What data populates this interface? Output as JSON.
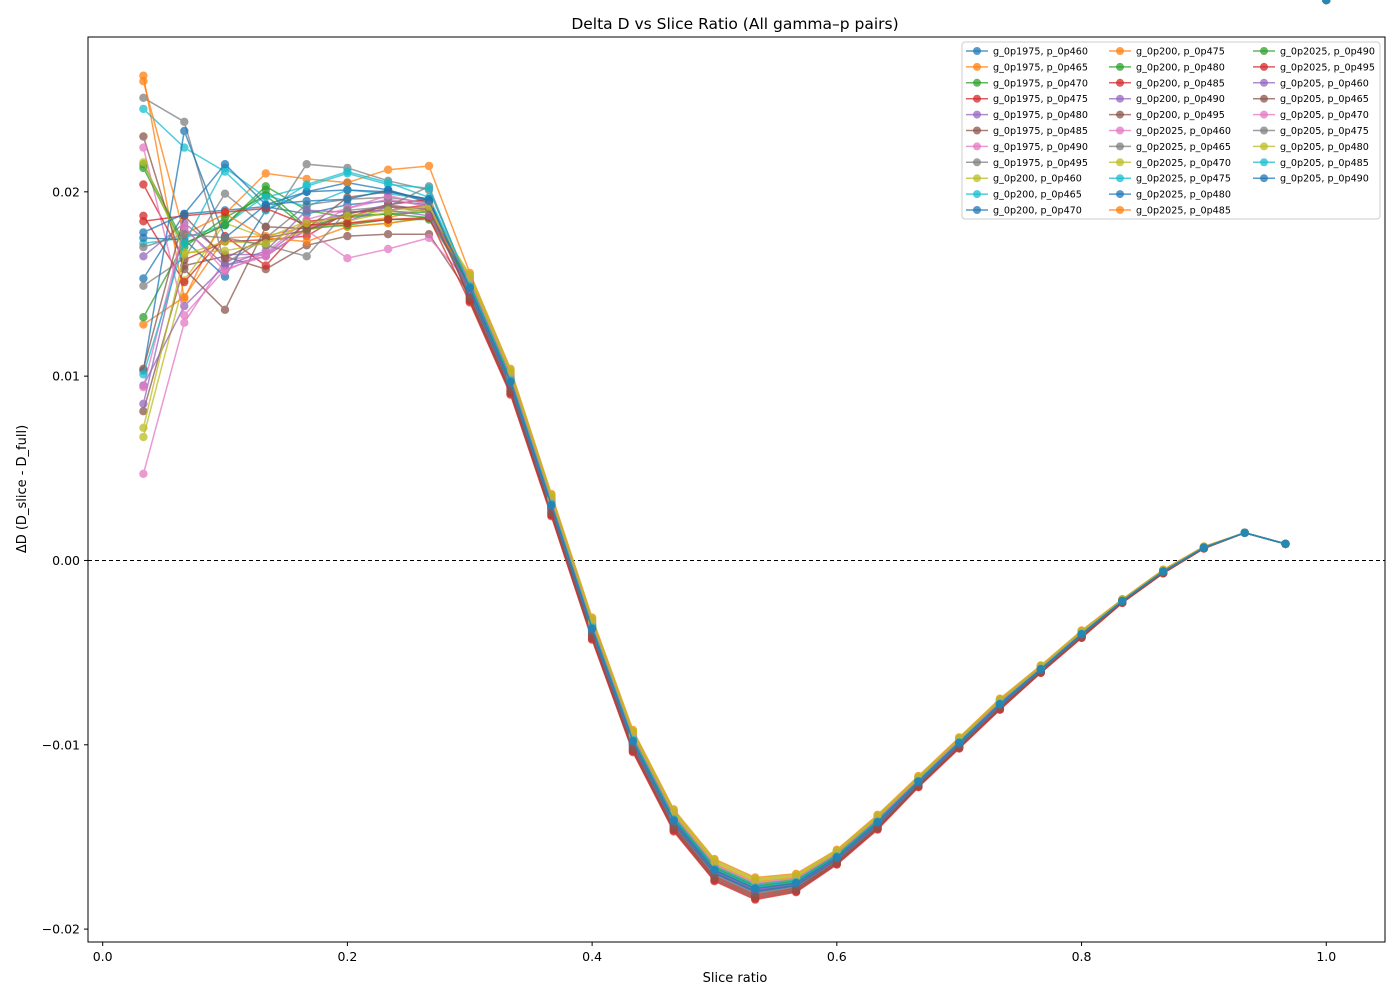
{
  "chart_data": {
    "type": "line",
    "title": "Delta D vs Slice Ratio (All gamma–p pairs)",
    "xlabel": "Slice ratio",
    "ylabel": "ΔD (D_slice - D_full)",
    "xlim": [
      -0.012,
      1.048
    ],
    "ylim": [
      -0.0207,
      0.0284
    ],
    "xticks": [
      0.0,
      0.2,
      0.4,
      0.6,
      0.8,
      1.0
    ],
    "xtick_labels": [
      "0.0",
      "0.2",
      "0.4",
      "0.6",
      "0.8",
      "1.0"
    ],
    "yticks": [
      -0.02,
      -0.01,
      0.0,
      0.01,
      0.02
    ],
    "ytick_labels": [
      "−0.02",
      "−0.01",
      "0.00",
      "0.01",
      "0.02"
    ],
    "reference_line": {
      "y": 0.0,
      "style": "dashed",
      "color": "#000000"
    },
    "grid": false,
    "legend_position": "top-right",
    "legend_columns": 3,
    "palette": [
      "#1f77b4",
      "#ff7f0e",
      "#2ca02c",
      "#d62728",
      "#9467bd",
      "#8c564b",
      "#e377c2",
      "#7f7f7f",
      "#bcbd22",
      "#17becf"
    ],
    "x": [
      0.0333,
      0.0667,
      0.1,
      0.1333,
      0.1667,
      0.2,
      0.2333,
      0.2667,
      0.3,
      0.3333,
      0.3667,
      0.4,
      0.4333,
      0.4667,
      0.5,
      0.5333,
      0.5667,
      0.6,
      0.6333,
      0.6667,
      0.7,
      0.7333,
      0.7667,
      0.8,
      0.8333,
      0.8667,
      0.9,
      0.9333,
      0.9667,
      1.0
    ],
    "tail_x": [
      0.3,
      0.3333,
      0.3667,
      0.4,
      0.4333,
      0.4667,
      0.5,
      0.5333,
      0.5667,
      0.6,
      0.6333,
      0.6667,
      0.7,
      0.7333,
      0.7667,
      0.8,
      0.8333,
      0.8667,
      0.9,
      0.9333,
      0.9667,
      1.0
    ],
    "tail_base": [
      0.0183,
      0.0148,
      0.0097,
      0.003,
      -0.0037,
      -0.0098,
      -0.0141,
      -0.0168,
      -0.0178,
      -0.0175,
      -0.0161,
      -0.0142,
      -0.012,
      -0.0099,
      -0.0078,
      -0.0059,
      -0.004,
      -0.0022,
      -0.0006,
      0.0007,
      0.0015,
      0.0009
    ],
    "tail_spread": [
      0.001,
      0.0008,
      0.0007,
      0.0006,
      0.0006,
      0.0006,
      0.0006,
      0.0006,
      0.0006,
      0.0005,
      0.0004,
      0.0004,
      0.0003,
      0.0003,
      0.0003,
      0.0002,
      0.0002,
      0.0001,
      0.0001,
      5e-05,
      0.0,
      0.0
    ],
    "series": [
      {
        "name": "g_0p1975, p_0p460",
        "color": "#1f77b4",
        "head": [
          0.0153,
          0.0188,
          0.019,
          0.0192,
          0.0188,
          0.0193,
          0.0195,
          0.0193
        ],
        "offset": 0.0
      },
      {
        "name": "g_0p1975, p_0p465",
        "color": "#ff7f0e",
        "head": [
          0.0128,
          0.0143,
          0.0175,
          0.0176,
          0.0181,
          0.0183,
          0.0186,
          0.0191
        ],
        "offset": 0.1
      },
      {
        "name": "g_0p1975, p_0p470",
        "color": "#2ca02c",
        "head": [
          0.0132,
          0.0172,
          0.0182,
          0.0203,
          0.019,
          0.0186,
          0.0188,
          0.0189
        ],
        "offset": -0.2
      },
      {
        "name": "g_0p1975, p_0p475",
        "color": "#d62728",
        "head": [
          0.0204,
          0.0163,
          0.0173,
          0.0174,
          0.0176,
          0.0189,
          0.019,
          0.0193
        ],
        "offset": -0.6
      },
      {
        "name": "g_0p1975, p_0p480",
        "color": "#9467bd",
        "head": [
          0.0165,
          0.0183,
          0.0166,
          0.0166,
          0.0183,
          0.0188,
          0.0193,
          0.019
        ],
        "offset": -0.1
      },
      {
        "name": "g_0p1975, p_0p485",
        "color": "#8c564b",
        "head": [
          0.0081,
          0.016,
          0.0165,
          0.0158,
          0.0171,
          0.0176,
          0.0177,
          0.0177
        ],
        "offset": -0.5
      },
      {
        "name": "g_0p1975, p_0p490",
        "color": "#e377c2",
        "head": [
          0.0047,
          0.0129,
          0.0163,
          0.0166,
          0.0179,
          0.0164,
          0.0169,
          0.0175
        ],
        "offset": 0.3
      },
      {
        "name": "g_0p1975, p_0p495",
        "color": "#7f7f7f",
        "head": [
          0.0149,
          0.0164,
          0.0199,
          0.0181,
          0.0215,
          0.0213,
          0.0206,
          0.0201
        ],
        "offset": 0.2
      },
      {
        "name": "g_0p200, p_0p460",
        "color": "#bcbd22",
        "head": [
          0.0067,
          0.0152,
          0.0183,
          0.0175,
          0.0184,
          0.0181,
          0.0183,
          0.0186
        ],
        "offset": 0.8
      },
      {
        "name": "g_0p200, p_0p465",
        "color": "#17becf",
        "head": [
          0.0172,
          0.0175,
          0.0182,
          0.0198,
          0.0192,
          0.0201,
          0.0199,
          0.0196
        ],
        "offset": 0.1
      },
      {
        "name": "g_0p200, p_0p470",
        "color": "#1f77b4",
        "head": [
          0.0175,
          0.0174,
          0.0154,
          0.019,
          0.02,
          0.0205,
          0.0201,
          0.0194
        ],
        "offset": -0.2
      },
      {
        "name": "g_0p200, p_0p475",
        "color": "#ff7f0e",
        "head": [
          0.0263,
          0.0142,
          0.0188,
          0.021,
          0.0207,
          0.0205,
          0.0212,
          0.0214
        ],
        "offset": 1.0
      },
      {
        "name": "g_0p200, p_0p480",
        "color": "#2ca02c",
        "head": [
          0.0215,
          0.0172,
          0.0182,
          0.0201,
          0.0181,
          0.0187,
          0.0188,
          0.0186
        ],
        "offset": 0.4
      },
      {
        "name": "g_0p200, p_0p485",
        "color": "#d62728",
        "head": [
          0.0187,
          0.0151,
          0.0176,
          0.016,
          0.0184,
          0.0186,
          0.0193,
          0.0196
        ],
        "offset": -0.8
      },
      {
        "name": "g_0p200, p_0p490",
        "color": "#9467bd",
        "head": [
          0.0095,
          0.0138,
          0.016,
          0.0165,
          0.018,
          0.0184,
          0.0192,
          0.0189
        ],
        "offset": -0.3
      },
      {
        "name": "g_0p200, p_0p495",
        "color": "#8c564b",
        "head": [
          0.023,
          0.0158,
          0.0136,
          0.0181,
          0.018,
          0.0197,
          0.02,
          0.0196
        ],
        "offset": -0.9
      },
      {
        "name": "g_0p2025, p_0p460",
        "color": "#e377c2",
        "head": [
          0.0224,
          0.0133,
          0.0158,
          0.0165,
          0.018,
          0.0191,
          0.0196,
          0.0192
        ],
        "offset": 0.0
      },
      {
        "name": "g_0p2025, p_0p465",
        "color": "#7f7f7f",
        "head": [
          0.0251,
          0.0238,
          0.0161,
          0.0175,
          0.0193,
          0.0196,
          0.0197,
          0.0194
        ],
        "offset": -0.4
      },
      {
        "name": "g_0p2025, p_0p470",
        "color": "#bcbd22",
        "head": [
          0.0072,
          0.0166,
          0.0173,
          0.0172,
          0.0179,
          0.0184,
          0.0189,
          0.019
        ],
        "offset": 0.9
      },
      {
        "name": "g_0p2025, p_0p475",
        "color": "#17becf",
        "head": [
          0.0245,
          0.0224,
          0.0211,
          0.019,
          0.0204,
          0.0211,
          0.0205,
          0.0197
        ],
        "offset": 0.3
      },
      {
        "name": "g_0p2025, p_0p480",
        "color": "#1f77b4",
        "head": [
          0.0103,
          0.0233,
          0.0175,
          0.0193,
          0.02,
          0.0201,
          0.02,
          0.0196
        ],
        "offset": -0.3
      },
      {
        "name": "g_0p2025, p_0p485",
        "color": "#ff7f0e",
        "head": [
          0.026,
          0.0177,
          0.0188,
          0.0175,
          0.0173,
          0.0181,
          0.0183,
          0.0186
        ],
        "offset": 0.6
      },
      {
        "name": "g_0p2025, p_0p490",
        "color": "#2ca02c",
        "head": [
          0.0213,
          0.017,
          0.0186,
          0.0198,
          0.018,
          0.0182,
          0.0185,
          0.0185
        ],
        "offset": 0.2
      },
      {
        "name": "g_0p2025, p_0p495",
        "color": "#d62728",
        "head": [
          0.0184,
          0.0187,
          0.0189,
          0.0191,
          0.0182,
          0.0183,
          0.0185,
          0.0186
        ],
        "offset": -1.0
      },
      {
        "name": "g_0p205, p_0p460",
        "color": "#9467bd",
        "head": [
          0.0085,
          0.018,
          0.016,
          0.0168,
          0.019,
          0.0189,
          0.019,
          0.0187
        ],
        "offset": -0.1
      },
      {
        "name": "g_0p205, p_0p465",
        "color": "#8c564b",
        "head": [
          0.0104,
          0.0187,
          0.0164,
          0.0175,
          0.0179,
          0.0188,
          0.0192,
          0.0191
        ],
        "offset": -0.7
      },
      {
        "name": "g_0p205, p_0p470",
        "color": "#e377c2",
        "head": [
          0.0094,
          0.0181,
          0.0157,
          0.0167,
          0.0185,
          0.0191,
          0.0198,
          0.0193
        ],
        "offset": 0.5
      },
      {
        "name": "g_0p205, p_0p475",
        "color": "#7f7f7f",
        "head": [
          0.017,
          0.0177,
          0.0175,
          0.0171,
          0.0165,
          0.019,
          0.0192,
          0.0203
        ],
        "offset": 0.0
      },
      {
        "name": "g_0p205, p_0p480",
        "color": "#bcbd22",
        "head": [
          0.0216,
          0.0167,
          0.0168,
          0.0172,
          0.0183,
          0.0187,
          0.019,
          0.0192
        ],
        "offset": 0.7
      },
      {
        "name": "g_0p205, p_0p485",
        "color": "#17becf",
        "head": [
          0.0101,
          0.0172,
          0.0213,
          0.0197,
          0.0203,
          0.021,
          0.0204,
          0.0202
        ],
        "offset": 0.1
      },
      {
        "name": "g_0p205, p_0p490",
        "color": "#1f77b4",
        "head": [
          0.0178,
          0.0188,
          0.0215,
          0.0193,
          0.0195,
          0.0196,
          0.0201,
          0.0195
        ],
        "offset": 0.0
      }
    ]
  }
}
